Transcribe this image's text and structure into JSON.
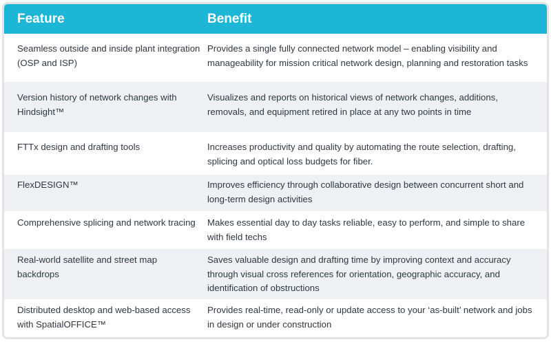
{
  "table": {
    "headers": {
      "feature": "Feature",
      "benefit": "Benefit"
    },
    "rows": [
      {
        "feature": "Seamless outside and inside plant integration (OSP and ISP)",
        "benefit": "Provides a single fully connected network model – enabling visibility and manageability for mission critical network design, planning and restoration tasks"
      },
      {
        "feature": "Version history of network changes with Hindsight™",
        "benefit": "Visualizes and reports on historical views of network changes, additions, removals, and equipment retired in place at any two points in time"
      },
      {
        "feature": "FTTx design and drafting tools",
        "benefit": "Increases productivity and quality by automating the route selection, drafting, splicing and optical loss budgets for fiber."
      },
      {
        "feature": "FlexDESIGN™",
        "benefit": "Improves efficiency through collaborative design between concurrent short and long-term design activities"
      },
      {
        "feature": "Comprehensive splicing and network tracing",
        "benefit": "Makes essential day to day tasks reliable, easy to perform, and simple to share with field techs"
      },
      {
        "feature": "Real-world satellite and street map backdrops",
        "benefit": "Saves valuable design and drafting time by improving context and accuracy through visual cross references for orientation, geographic accuracy, and identification of obstructions"
      },
      {
        "feature": "Distributed desktop and web-based access with SpatialOFFICE™",
        "benefit": "Provides real-time, read-only or update access to your ‘as-built’ network and jobs in design or under construction"
      }
    ]
  },
  "colors": {
    "header_bg": "#1eb6d6",
    "header_text": "#ffffff",
    "row_alt_bg": "#eef0f3",
    "body_text": "#2f3740",
    "border": "#e3e3e3"
  }
}
